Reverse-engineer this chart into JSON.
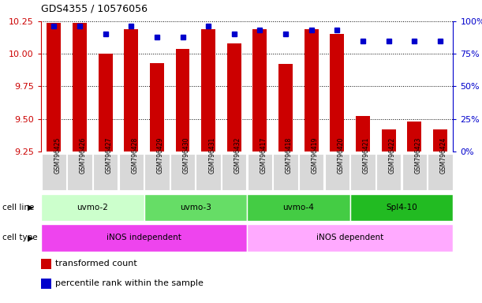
{
  "title": "GDS4355 / 10576056",
  "samples": [
    "GSM796425",
    "GSM796426",
    "GSM796427",
    "GSM796428",
    "GSM796429",
    "GSM796430",
    "GSM796431",
    "GSM796432",
    "GSM796417",
    "GSM796418",
    "GSM796419",
    "GSM796420",
    "GSM796421",
    "GSM796422",
    "GSM796423",
    "GSM796424"
  ],
  "red_values": [
    10.24,
    10.24,
    10.0,
    10.19,
    9.93,
    10.04,
    10.19,
    10.08,
    10.19,
    9.92,
    10.19,
    10.15,
    9.52,
    9.42,
    9.48,
    9.42
  ],
  "blue_values": [
    96,
    96,
    90,
    96,
    88,
    88,
    96,
    90,
    93,
    90,
    93,
    93,
    85,
    85,
    85,
    85
  ],
  "ylim_left": [
    9.25,
    10.25
  ],
  "ylim_right": [
    0,
    100
  ],
  "yticks_left": [
    9.25,
    9.5,
    9.75,
    10.0,
    10.25
  ],
  "yticks_right": [
    0,
    25,
    50,
    75,
    100
  ],
  "ytick_labels_right": [
    "0%",
    "25%",
    "50%",
    "75%",
    "100%"
  ],
  "cell_lines": [
    {
      "label": "uvmo-2",
      "start": 0,
      "end": 3,
      "color": "#ccffcc"
    },
    {
      "label": "uvmo-3",
      "start": 4,
      "end": 7,
      "color": "#66dd66"
    },
    {
      "label": "uvmo-4",
      "start": 8,
      "end": 11,
      "color": "#44cc44"
    },
    {
      "label": "Spl4-10",
      "start": 12,
      "end": 15,
      "color": "#22bb22"
    }
  ],
  "cell_types": [
    {
      "label": "iNOS independent",
      "start": 0,
      "end": 7,
      "color": "#ee44ee"
    },
    {
      "label": "iNOS dependent",
      "start": 8,
      "end": 15,
      "color": "#ffaaff"
    }
  ],
  "bar_color": "#cc0000",
  "dot_color": "#0000cc",
  "bg_color": "#ffffff",
  "left_axis_color": "#cc0000",
  "right_axis_color": "#0000cc",
  "bar_width": 0.55,
  "legend_items": [
    {
      "color": "#cc0000",
      "label": "transformed count"
    },
    {
      "color": "#0000cc",
      "label": "percentile rank within the sample"
    }
  ]
}
